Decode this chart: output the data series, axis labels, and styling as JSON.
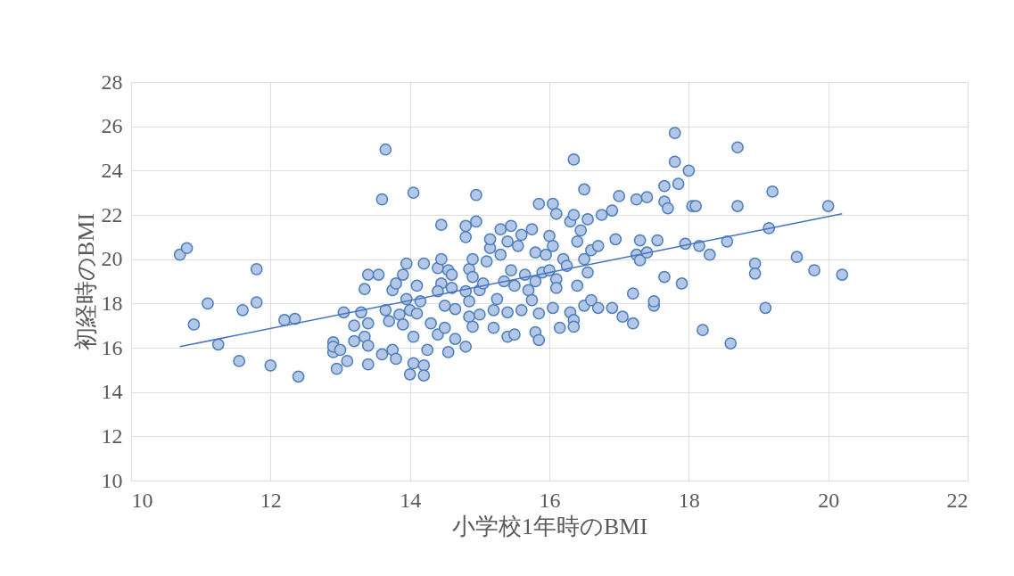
{
  "chart_data": {
    "type": "scatter",
    "xlabel": "小学校1年時のBMI",
    "ylabel": "初経時のBMI",
    "xlim": [
      10,
      22
    ],
    "xticks": [
      10,
      12,
      14,
      16,
      18,
      20,
      22
    ],
    "ylim": [
      10,
      28
    ],
    "yticks": [
      10,
      12,
      14,
      16,
      18,
      20,
      22,
      24,
      26,
      28
    ],
    "grid": true,
    "series": [
      {
        "marker": "circle",
        "color": "#b4c7e7",
        "x": [
          10.7,
          10.8,
          10.9,
          11.1,
          11.25,
          11.55,
          11.6,
          11.8,
          11.8,
          12.0,
          12.2,
          12.35,
          12.4,
          12.9,
          12.9,
          12.95,
          12.9,
          13.0,
          13.05,
          13.1,
          13.2,
          13.2,
          13.3,
          13.35,
          13.35,
          13.4,
          13.4,
          13.4,
          13.4,
          13.55,
          13.6,
          13.65,
          13.6,
          13.65,
          13.7,
          13.75,
          13.75,
          13.8,
          13.8,
          13.85,
          13.9,
          13.9,
          13.95,
          13.95,
          14.0,
          14.0,
          14.05,
          14.05,
          14.05,
          14.1,
          14.1,
          14.15,
          14.2,
          14.2,
          14.25,
          14.2,
          14.3,
          14.4,
          14.45,
          14.4,
          14.45,
          14.45,
          14.4,
          14.5,
          14.55,
          14.5,
          14.55,
          14.6,
          14.6,
          14.65,
          14.65,
          14.8,
          14.8,
          14.8,
          14.8,
          14.85,
          14.85,
          14.85,
          14.9,
          14.9,
          14.9,
          14.95,
          14.95,
          15.0,
          15.0,
          15.05,
          15.1,
          15.15,
          15.15,
          15.2,
          15.2,
          15.25,
          15.3,
          15.3,
          15.35,
          15.4,
          15.4,
          15.4,
          15.45,
          15.45,
          15.5,
          15.5,
          15.55,
          15.6,
          15.6,
          15.65,
          15.7,
          15.75,
          15.75,
          15.8,
          15.8,
          15.8,
          15.85,
          15.85,
          15.85,
          15.9,
          15.95,
          16.0,
          16.0,
          16.05,
          16.05,
          16.05,
          16.1,
          16.1,
          16.1,
          16.15,
          16.2,
          16.25,
          16.3,
          16.3,
          16.35,
          16.35,
          16.35,
          16.35,
          16.4,
          16.4,
          16.45,
          16.5,
          16.5,
          16.5,
          16.55,
          16.55,
          16.6,
          16.6,
          16.7,
          16.75,
          16.7,
          16.9,
          16.9,
          16.95,
          17.0,
          17.05,
          17.2,
          17.2,
          17.25,
          17.25,
          17.3,
          17.3,
          17.4,
          17.4,
          17.5,
          17.5,
          17.55,
          17.65,
          17.65,
          17.65,
          17.7,
          17.8,
          17.8,
          17.85,
          17.9,
          17.95,
          18.0,
          18.05,
          18.1,
          18.15,
          18.2,
          18.3,
          18.55,
          18.6,
          18.7,
          18.7,
          18.95,
          18.95,
          19.1,
          19.15,
          19.2,
          19.55,
          19.8,
          20.0,
          20.2
        ],
        "values": [
          20.2,
          20.5,
          17.05,
          18.0,
          16.15,
          15.4,
          17.7,
          18.05,
          19.55,
          15.2,
          17.25,
          17.3,
          14.7,
          16.25,
          15.8,
          15.05,
          16.05,
          15.9,
          17.6,
          15.4,
          16.3,
          17.0,
          17.6,
          16.5,
          18.65,
          19.3,
          17.1,
          16.1,
          15.25,
          19.3,
          22.7,
          24.95,
          15.7,
          17.7,
          17.2,
          18.6,
          15.9,
          15.5,
          18.9,
          17.5,
          19.3,
          17.05,
          18.2,
          19.8,
          14.8,
          17.7,
          23.0,
          15.3,
          16.5,
          18.8,
          17.55,
          18.1,
          15.2,
          14.75,
          15.9,
          19.8,
          17.1,
          16.6,
          21.55,
          19.6,
          20.0,
          18.9,
          18.55,
          17.9,
          19.5,
          16.9,
          15.8,
          18.7,
          19.3,
          17.75,
          16.4,
          16.05,
          21.0,
          21.5,
          18.55,
          19.55,
          17.4,
          18.1,
          20.0,
          19.2,
          16.95,
          21.7,
          22.9,
          17.5,
          18.6,
          18.9,
          19.9,
          20.5,
          20.9,
          17.7,
          16.9,
          18.2,
          21.35,
          20.2,
          19.0,
          20.8,
          16.5,
          17.6,
          21.5,
          19.5,
          18.8,
          16.6,
          20.6,
          21.1,
          17.7,
          19.3,
          18.6,
          21.35,
          18.15,
          20.3,
          19.0,
          16.7,
          22.5,
          16.35,
          17.55,
          19.4,
          20.2,
          21.05,
          19.5,
          22.5,
          20.6,
          17.8,
          22.05,
          19.1,
          18.7,
          16.9,
          20.0,
          19.7,
          17.6,
          21.7,
          22.0,
          24.5,
          17.25,
          16.95,
          20.8,
          18.8,
          21.3,
          23.15,
          20.0,
          17.9,
          19.4,
          21.8,
          20.4,
          18.15,
          20.6,
          22.0,
          17.8,
          22.2,
          17.8,
          20.9,
          22.85,
          17.4,
          17.1,
          18.45,
          20.2,
          22.7,
          20.85,
          19.95,
          22.8,
          20.3,
          17.9,
          18.1,
          20.85,
          22.6,
          23.3,
          19.2,
          22.3,
          24.4,
          25.7,
          23.4,
          18.9,
          20.7,
          24.0,
          22.4,
          22.4,
          20.6,
          16.8,
          20.2,
          20.8,
          16.2,
          25.05,
          22.4,
          19.8,
          19.35,
          17.8,
          21.4,
          23.05,
          20.1,
          19.5,
          22.4,
          19.3
        ]
      },
      {
        "type": "line",
        "marker": "none",
        "line_style": "solid",
        "color": "#4472c4",
        "x": [
          10.7,
          20.2
        ],
        "values": [
          16.05,
          22.05
        ]
      }
    ]
  }
}
